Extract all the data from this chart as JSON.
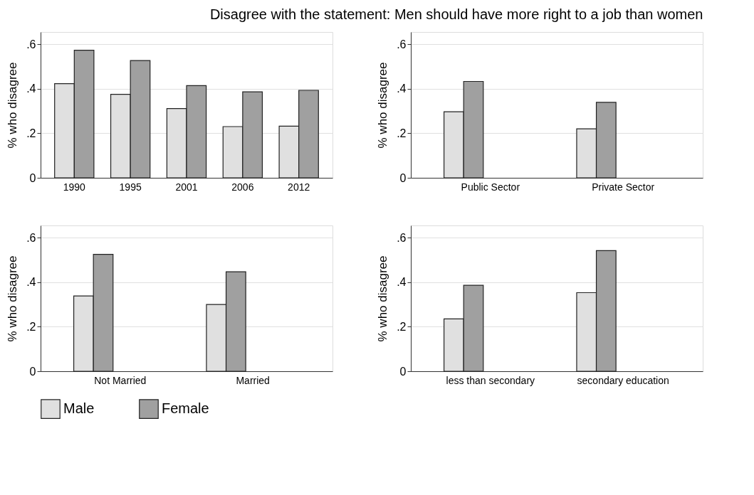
{
  "chart_data": [
    {
      "type": "bar",
      "title": "Disagree with the statement: Men should have more right to a job than women",
      "ylabel": "% who disagree",
      "categories": [
        "1990",
        "1995",
        "2001",
        "2006",
        "2012"
      ],
      "series": [
        {
          "name": "Male",
          "color": "#e0e0e0",
          "values": [
            0.423,
            0.375,
            0.311,
            0.23,
            0.232
          ]
        },
        {
          "name": "Female",
          "color": "#a0a0a0",
          "values": [
            0.573,
            0.527,
            0.414,
            0.386,
            0.393
          ]
        }
      ],
      "ylim": [
        0,
        0.655
      ],
      "yticks": [
        0,
        {
          "value": 0.2,
          "label": ".2"
        },
        {
          "value": 0.4,
          "label": ".4"
        },
        {
          "value": 0.6,
          "label": ".6"
        }
      ],
      "grid": "y",
      "legend": "bottom"
    },
    {
      "type": "bar",
      "ylabel": "% who disagree",
      "categories": [
        "Public Sector",
        "Private Sector"
      ],
      "series": [
        {
          "name": "Male",
          "color": "#e0e0e0",
          "values": [
            0.297,
            0.22
          ]
        },
        {
          "name": "Female",
          "color": "#a0a0a0",
          "values": [
            0.433,
            0.339
          ]
        }
      ],
      "ylim": [
        0,
        0.655
      ],
      "yticks": [
        0,
        {
          "value": 0.2,
          "label": ".2"
        },
        {
          "value": 0.4,
          "label": ".4"
        },
        {
          "value": 0.6,
          "label": ".6"
        }
      ],
      "grid": "y",
      "legend": "bottom"
    },
    {
      "type": "bar",
      "ylabel": "% who disagree",
      "categories": [
        "Not Married",
        "Married"
      ],
      "series": [
        {
          "name": "Male",
          "color": "#e0e0e0",
          "values": [
            0.338,
            0.3
          ]
        },
        {
          "name": "Female",
          "color": "#a0a0a0",
          "values": [
            0.525,
            0.447
          ]
        }
      ],
      "ylim": [
        0,
        0.655
      ],
      "yticks": [
        0,
        {
          "value": 0.2,
          "label": ".2"
        },
        {
          "value": 0.4,
          "label": ".4"
        },
        {
          "value": 0.6,
          "label": ".6"
        }
      ],
      "grid": "y",
      "legend": "bottom"
    },
    {
      "type": "bar",
      "ylabel": "% who disagree",
      "categories": [
        "less than secondary",
        "secondary education"
      ],
      "series": [
        {
          "name": "Male",
          "color": "#e0e0e0",
          "values": [
            0.235,
            0.353
          ]
        },
        {
          "name": "Female",
          "color": "#a0a0a0",
          "values": [
            0.386,
            0.542
          ]
        }
      ],
      "ylim": [
        0,
        0.655
      ],
      "yticks": [
        0,
        {
          "value": 0.2,
          "label": ".2"
        },
        {
          "value": 0.4,
          "label": ".4"
        },
        {
          "value": 0.6,
          "label": ".6"
        }
      ],
      "grid": "y",
      "legend": "bottom"
    }
  ]
}
